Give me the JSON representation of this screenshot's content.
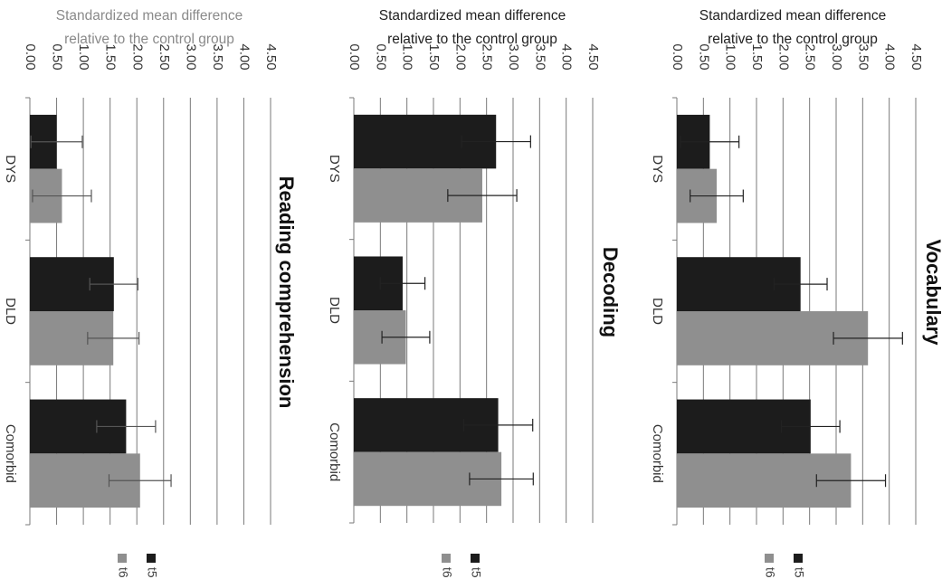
{
  "chart_data": [
    {
      "type": "bar",
      "orientation": "horizontal",
      "rotated": "90deg-clockwise",
      "title": "Vocabulary",
      "ylabel": "Standardized mean difference relative to the control group",
      "ylabel_lines": [
        "Standardized mean difference",
        "relative to the control group"
      ],
      "ylabel_color": "#222222",
      "ylim": [
        0,
        4.5
      ],
      "ticks": [
        "0.00",
        "0.50",
        "1.00",
        "1.50",
        "2.00",
        "2.50",
        "3.00",
        "3.50",
        "4.00",
        "4.50"
      ],
      "categories": [
        "DYS",
        "DLD",
        "Comorbid"
      ],
      "grid": true,
      "legend_position": "bottom",
      "series": [
        {
          "name": "t5",
          "color": "#1c1c1c",
          "values": [
            0.62,
            2.33,
            2.52
          ],
          "errors": [
            0.55,
            0.5,
            0.55
          ]
        },
        {
          "name": "t6",
          "color": "#8f8f8f",
          "values": [
            0.75,
            3.6,
            3.28
          ],
          "errors": [
            0.5,
            0.65,
            0.65
          ]
        }
      ]
    },
    {
      "type": "bar",
      "orientation": "horizontal",
      "rotated": "90deg-clockwise",
      "title": "Decoding",
      "ylabel": "Standardized mean difference relative to the control group",
      "ylabel_lines": [
        "Standardized mean difference",
        "relative to the control group"
      ],
      "ylabel_color": "#222222",
      "ylim": [
        0,
        4.5
      ],
      "ticks": [
        "0.00",
        "0.50",
        "1.00",
        "1.50",
        "2.00",
        "2.50",
        "3.00",
        "3.50",
        "4.00",
        "4.50"
      ],
      "categories": [
        "DYS",
        "DLD",
        "Comorbid"
      ],
      "grid": true,
      "legend_position": "bottom",
      "series": [
        {
          "name": "t5",
          "color": "#1c1c1c",
          "values": [
            2.68,
            0.92,
            2.72
          ],
          "errors": [
            0.65,
            0.42,
            0.65
          ]
        },
        {
          "name": "t6",
          "color": "#8f8f8f",
          "values": [
            2.42,
            0.98,
            2.78
          ],
          "errors": [
            0.65,
            0.45,
            0.6
          ]
        }
      ]
    },
    {
      "type": "bar",
      "orientation": "horizontal",
      "rotated": "90deg-clockwise",
      "title": "Reading comprehension",
      "ylabel": "Standardized mean difference relative to the control group",
      "ylabel_lines": [
        "Standardized mean difference",
        "relative to the control group"
      ],
      "ylabel_color": "#8a8a8a",
      "ylim": [
        0,
        4.5
      ],
      "ticks": [
        "0.00",
        "0.50",
        "1.00",
        "1.50",
        "2.00",
        "2.50",
        "3.00",
        "3.50",
        "4.00",
        "4.50"
      ],
      "categories": [
        "DYS",
        "DLD",
        "Comorbid"
      ],
      "grid": true,
      "legend_position": "bottom",
      "series": [
        {
          "name": "t5",
          "color": "#1c1c1c",
          "values": [
            0.5,
            1.57,
            1.8
          ],
          "errors": [
            0.48,
            0.45,
            0.55
          ]
        },
        {
          "name": "t6",
          "color": "#8f8f8f",
          "values": [
            0.6,
            1.56,
            2.06
          ],
          "errors": [
            0.55,
            0.48,
            0.58
          ]
        }
      ]
    }
  ]
}
